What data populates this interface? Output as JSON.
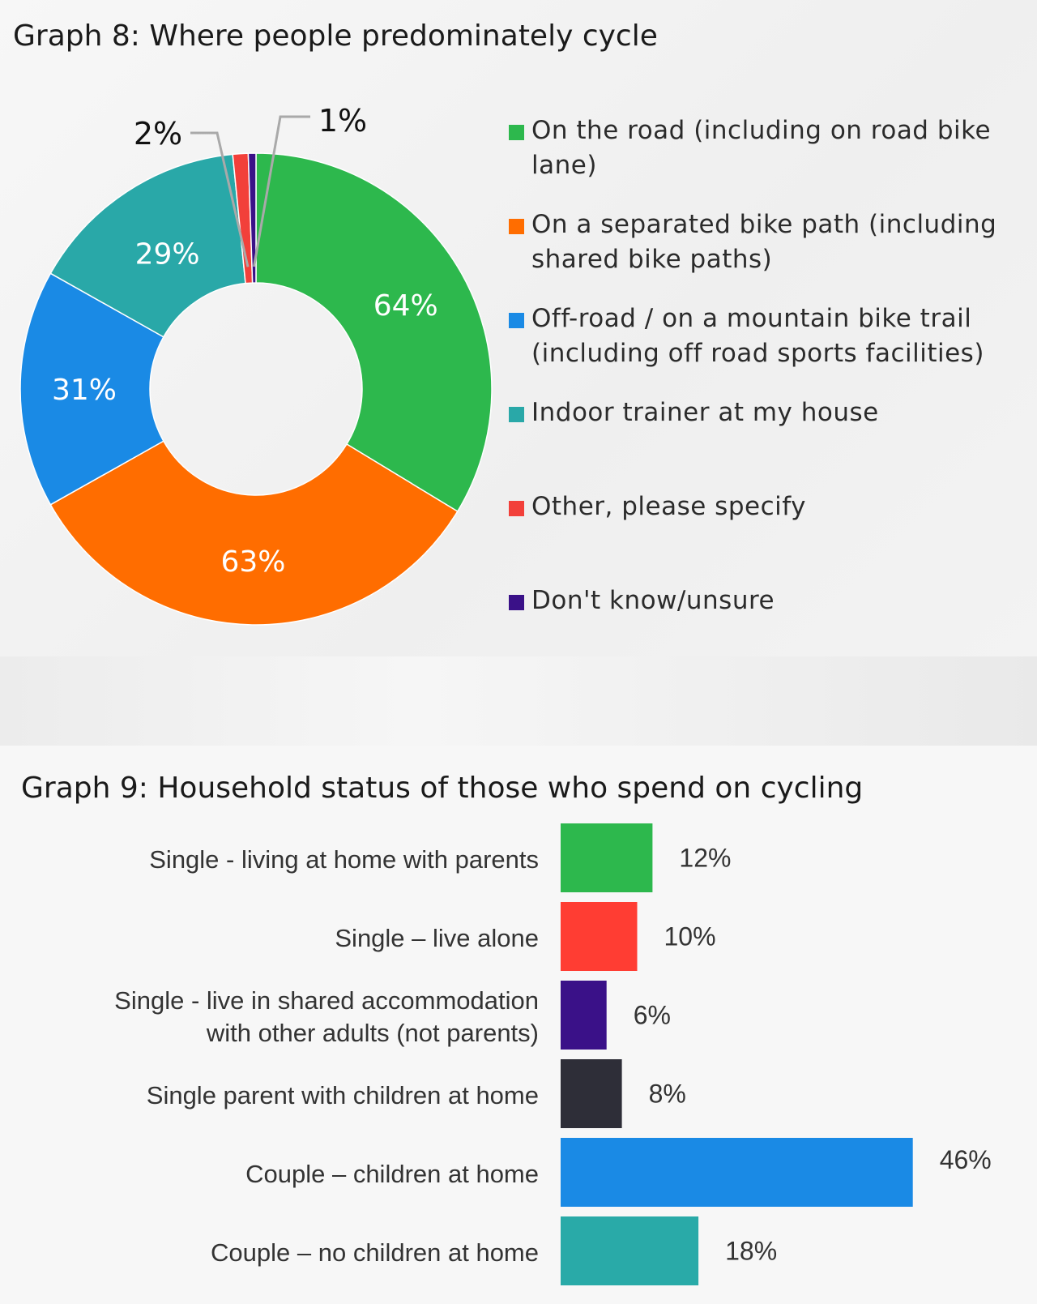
{
  "chart_data": [
    {
      "type": "pie",
      "title": "Graph 8: Where people predominately cycle",
      "legend_position": "right",
      "categories": [
        "On the road (including on road bike lane)",
        "On a separated bike path (including shared bike paths)",
        "Off-road / on a mountain bike trail (including off road sports facilities)",
        "Indoor trainer at my house",
        "Other, please specify",
        "Don't know/unsure"
      ],
      "values": [
        64,
        63,
        31,
        29,
        2,
        1
      ],
      "value_labels": [
        "64%",
        "63%",
        "31%",
        "29%",
        "2%",
        "1%"
      ],
      "colors": [
        "#2db84d",
        "#ff6d00",
        "#1a8ae5",
        "#29a8a8",
        "#f2403a",
        "#3a1188"
      ]
    },
    {
      "type": "bar",
      "orientation": "horizontal",
      "title": "Graph 9: Household status of those who spend on cycling",
      "categories": [
        "Single - living at home with parents",
        "Single – live alone",
        "Single - live in shared accommodation\nwith other adults (not parents)",
        "Single parent with children at home",
        "Couple – children at home",
        "Couple – no children at home"
      ],
      "values": [
        12,
        10,
        6,
        8,
        46,
        18
      ],
      "value_labels": [
        "12%",
        "10%",
        "6%",
        "8%",
        "46%",
        "18%"
      ],
      "colors": [
        "#2db84d",
        "#ff3d33",
        "#3a1188",
        "#2e2e38",
        "#1a8ae5",
        "#29aaa8"
      ]
    }
  ]
}
